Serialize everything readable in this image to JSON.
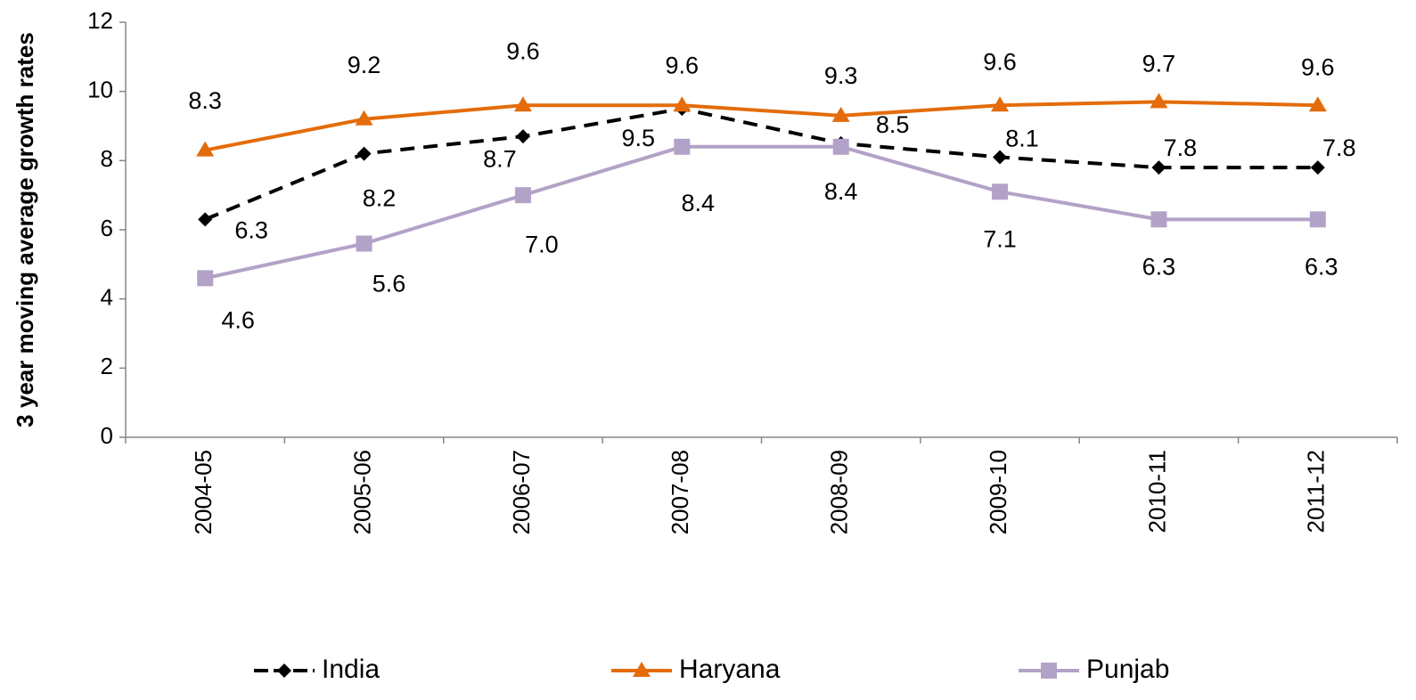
{
  "chart_data": {
    "type": "line",
    "y_label": "3 year moving average growth rates",
    "categories": [
      "2004-05",
      "2005-06",
      "2006-07",
      "2007-08",
      "2008-09",
      "2009-10",
      "2010-11",
      "2011-12"
    ],
    "series": [
      {
        "name": "India",
        "color": "#000000",
        "dash": true,
        "marker": "diamond",
        "values": [
          6.3,
          8.2,
          8.7,
          9.5,
          8.5,
          8.1,
          7.8,
          7.8
        ],
        "value_labels": [
          "6.3",
          "8.2",
          "8.7",
          "9.5",
          "8.5",
          "8.1",
          "7.8",
          "7.8"
        ]
      },
      {
        "name": "Haryana",
        "color": "#e46c0a",
        "dash": false,
        "marker": "triangle",
        "values": [
          8.3,
          9.2,
          9.6,
          9.6,
          9.3,
          9.6,
          9.7,
          9.6
        ],
        "value_labels": [
          "8.3",
          "9.2",
          "9.6",
          "9.6",
          "9.3",
          "9.6",
          "9.7",
          "9.6"
        ]
      },
      {
        "name": "Punjab",
        "color": "#b3a2c7",
        "dash": false,
        "marker": "square",
        "values": [
          4.6,
          5.6,
          7.0,
          8.4,
          8.4,
          7.1,
          6.3,
          6.3
        ],
        "value_labels": [
          "4.6",
          "5.6",
          "7.0",
          "8.4",
          "8.4",
          "7.1",
          "6.3",
          "6.3"
        ]
      }
    ],
    "ylim": [
      0,
      12
    ],
    "yticks": [
      0,
      2,
      4,
      6,
      8,
      10,
      12
    ],
    "grid": false,
    "legend": "bottom"
  }
}
